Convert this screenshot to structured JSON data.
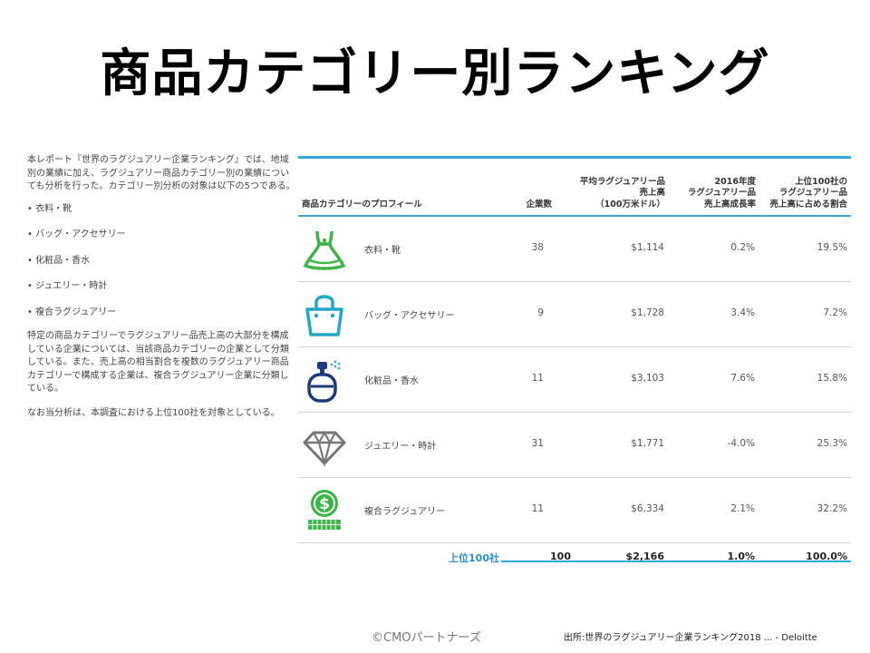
{
  "title": "商品カテゴリー別ランキング",
  "intro": {
    "paragraph": "本レポート『世界のラグジュアリー企業ランキング』では、地域別の業績に加え、ラグジュアリー商品カテゴリー別の業績についても分析を行った。カテゴリー別分析の対象は以下の5つである。",
    "bullets": [
      "• 衣料・靴",
      "• バッグ・アクセサリー",
      "• 化粧品・香水",
      "• ジュエリー・時計",
      "• 複合ラグジュアリー"
    ],
    "paragraph2": "特定の商品カテゴリーでラグジュアリー品売上高の大部分を構成している企業については、当該商品カテゴリーの企業として分類している。また、売上高の相当割合を複数のラグジュアリー商品カテゴリーで構成する企業は、複合ラグジュアリー企業に分類している。",
    "paragraph3": "なお当分析は、本調査における上位100社を対象としている。"
  },
  "table": {
    "headers": {
      "profile": "商品カテゴリーのプロフィール",
      "count": "企業数",
      "avg_sales": "平均ラグジュアリー品\n売上高\n（100万米ドル）",
      "growth": "2016年度\nラグジュアリー品\n売上高成長率",
      "share": "上位100社の\nラグジュアリー品\n売上高に占める割合"
    },
    "rows": [
      {
        "icon": "dress-icon",
        "name": "衣料・靴",
        "count": "38",
        "avg_sales": "$1,114",
        "growth": "0.2%",
        "share": "19.5%"
      },
      {
        "icon": "bag-icon",
        "name": "バッグ・アクセサリー",
        "count": "9",
        "avg_sales": "$1,728",
        "growth": "3.4%",
        "share": "7.2%"
      },
      {
        "icon": "perfume-icon",
        "name": "化粧品・香水",
        "count": "11",
        "avg_sales": "$3,103",
        "growth": "7.6%",
        "share": "15.8%"
      },
      {
        "icon": "diamond-icon",
        "name": "ジュエリー・時計",
        "count": "31",
        "avg_sales": "$1,771",
        "growth": "-4.0%",
        "share": "25.3%"
      },
      {
        "icon": "dollar-coins-icon",
        "name": "複合ラグジュアリー",
        "count": "11",
        "avg_sales": "$6,334",
        "growth": "2.1%",
        "share": "32.2%"
      }
    ],
    "total": {
      "label": "上位100社",
      "count": "100",
      "avg_sales": "$2,166",
      "growth": "1.0%",
      "share": "100.0%"
    }
  },
  "footer": {
    "copyright": "©CMOパートナーズ",
    "source": "出所:世界のラグジュアリー企業ランキング2018 ... - Deloitte"
  },
  "colors": {
    "accent": "#33a8d8",
    "green": "#3db549",
    "teal": "#22a8c4",
    "navy": "#1d3b7a",
    "gray": "#777777"
  }
}
